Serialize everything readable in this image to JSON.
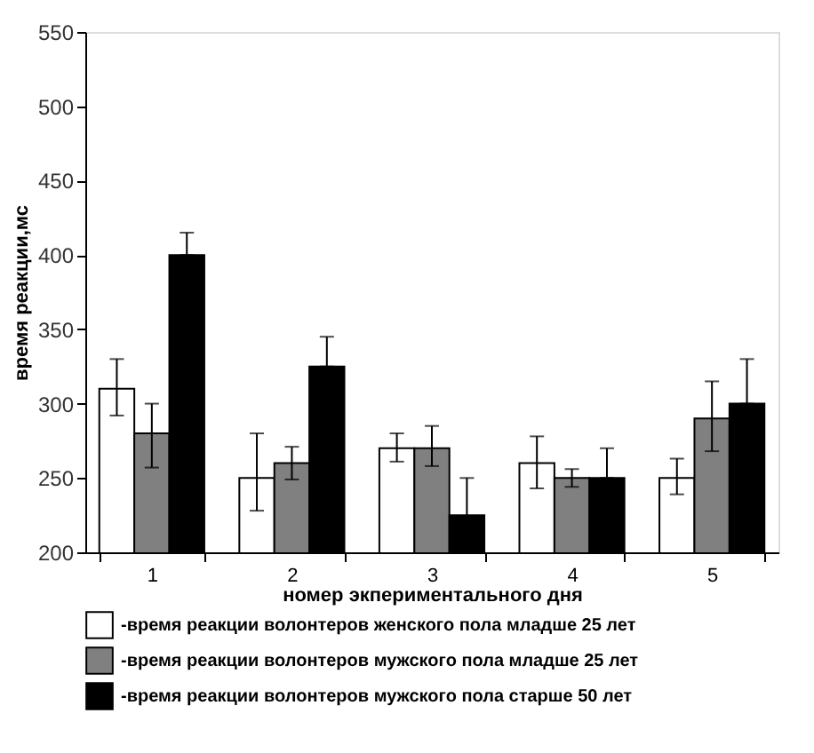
{
  "chart_data": {
    "type": "bar",
    "xlabel": "номер экпериментального дня",
    "ylabel": "время реакции,мс",
    "categories": [
      "1",
      "2",
      "3",
      "4",
      "5"
    ],
    "series": [
      {
        "name": "-время реакции волонтеров женского пола младше 25 лет",
        "color": "#ffffff",
        "values": [
          310,
          250,
          270,
          260,
          250
        ],
        "errors": [
          [
            292,
            330
          ],
          [
            228,
            280
          ],
          [
            261,
            280
          ],
          [
            243,
            278
          ],
          [
            239,
            263
          ]
        ]
      },
      {
        "name": "-время реакции волонтеров мужского пола младше 25 лет",
        "color": "#808080",
        "values": [
          280,
          260,
          270,
          250,
          290
        ],
        "errors": [
          [
            257,
            300
          ],
          [
            249,
            271
          ],
          [
            258,
            285
          ],
          [
            244,
            256
          ],
          [
            268,
            315
          ]
        ]
      },
      {
        "name": "-время реакции волонтеров мужского пола старше 50 лет",
        "color": "#000000",
        "values": [
          400,
          325,
          225,
          250,
          300
        ],
        "errors": [
          [
            400,
            415
          ],
          [
            325,
            345
          ],
          [
            200,
            250
          ],
          [
            250,
            270
          ],
          [
            300,
            330
          ]
        ]
      }
    ],
    "ylim": [
      200,
      550
    ],
    "yticks": [
      200,
      250,
      300,
      350,
      400,
      450,
      500,
      550
    ],
    "legend": "bottom",
    "grid": false
  }
}
